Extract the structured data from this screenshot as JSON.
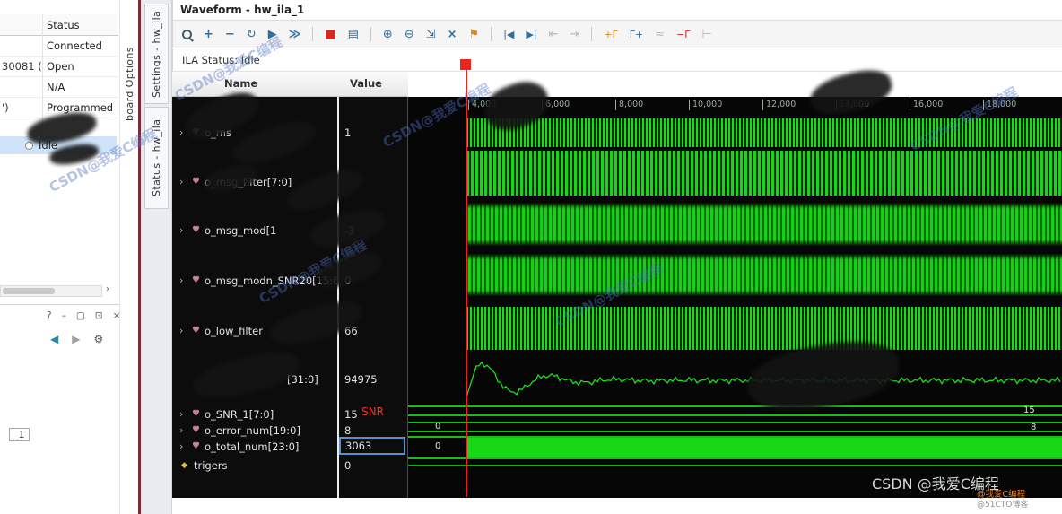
{
  "colors": {
    "wave_green": "#17d817",
    "trigger_red": "#e8261f",
    "selection_blue": "#cfe4f8"
  },
  "left_panel": {
    "table": {
      "header": "Status",
      "rows": [
        {
          "left": "",
          "status": "Connected"
        },
        {
          "left": "30081 (",
          "status": "Open"
        },
        {
          "left": "",
          "status": "N/A"
        },
        {
          "left": "')",
          "status": "Programmed"
        }
      ],
      "selected_status": "Idle"
    },
    "scroll_button": "›",
    "subpanel": {
      "controls": {
        "help": "?",
        "minimize": "–",
        "maximize": "▢",
        "float": "⊡",
        "close": "×"
      },
      "nav": {
        "back": "◀",
        "forward": "▶",
        "settings": "⚙"
      }
    },
    "partial_label": "_1"
  },
  "side_tabs": {
    "dashboard": "board Options",
    "settings_tab": "Settings - hw_ila",
    "status_tab": "Status - hw_ila"
  },
  "panel": {
    "title": "Waveform - hw_ila_1",
    "ila_status": "ILA Status: Idle",
    "columns": {
      "name": "Name",
      "value": "Value"
    }
  },
  "icons": {
    "expand": "›",
    "signal": "♥",
    "trigger": "◆"
  },
  "toolbar": {
    "items": [
      {
        "name": "find",
        "glyph": ""
      },
      {
        "name": "add",
        "glyph": "+"
      },
      {
        "name": "remove",
        "glyph": "−"
      },
      {
        "name": "restart-trigger",
        "glyph": "↻"
      },
      {
        "name": "run-trigger",
        "glyph": "▶"
      },
      {
        "name": "run-trigger-immediate",
        "glyph": "≫"
      },
      {
        "name": "stop-trigger",
        "glyph": "■"
      },
      {
        "name": "export-ila-data",
        "glyph": "▤"
      },
      {
        "name": "zoom-in",
        "glyph": "⊕"
      },
      {
        "name": "zoom-out",
        "glyph": "⊖"
      },
      {
        "name": "zoom-fit",
        "glyph": "⇲"
      },
      {
        "name": "zoom-to-cursors",
        "glyph": "×"
      },
      {
        "name": "add-marker",
        "glyph": "⚑"
      },
      {
        "name": "goto-first-transition",
        "glyph": "|◀"
      },
      {
        "name": "goto-last-transition",
        "glyph": "▶|"
      },
      {
        "name": "previous-marker",
        "glyph": "⇤"
      },
      {
        "name": "next-marker",
        "glyph": "⇥"
      },
      {
        "name": "add-before-trigger",
        "glyph": "+Γ"
      },
      {
        "name": "add-after-trigger",
        "glyph": "Γ+"
      },
      {
        "name": "link-markers",
        "glyph": "≈"
      },
      {
        "name": "remove-trigger",
        "glyph": "−Γ"
      },
      {
        "name": "snap-to-transition",
        "glyph": "⊢"
      }
    ]
  },
  "signals": [
    {
      "name": "o_ms",
      "value": "1"
    },
    {
      "name": "o_msg_filter[7:0]",
      "value": ""
    },
    {
      "name": "o_msg_mod[1",
      "value": "-3"
    },
    {
      "name": "o_msg_modn_SNR20[15:6]",
      "value": "0"
    },
    {
      "name": "o_low_filter",
      "value": "66"
    },
    {
      "name": "[31:0]",
      "value": "94975"
    },
    {
      "name": "o_SNR_1[7:0]",
      "value": "15"
    },
    {
      "name": "o_error_num[19:0]",
      "value": "8"
    },
    {
      "name": "o_total_num[23:0]",
      "value": "3063"
    },
    {
      "name": "trigers",
      "value": "0"
    }
  ],
  "timeline": {
    "ticks": [
      "4,000",
      "6,000",
      "8,000",
      "10,000",
      "12,000",
      "14,000",
      "16,000",
      "18,000"
    ]
  },
  "wave_labels": {
    "snr_annotation": "SNR",
    "pre_trigger_error": "0",
    "pre_trigger_total": "0",
    "snr_value_right": "15",
    "error_value_right": "8"
  },
  "watermarks": {
    "diagonal": "CSDN@我爱C编程",
    "bottom": "CSDN @我爱C编程",
    "badge_line1": "@我爱C编程",
    "badge_line2": "@51CTO博客"
  }
}
